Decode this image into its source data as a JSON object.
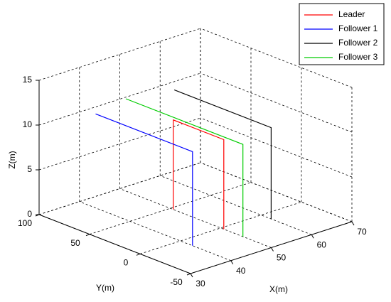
{
  "chart_data": {
    "type": "line3d",
    "xlabel": "X(m)",
    "ylabel": "Y(m)",
    "zlabel": "Z(m)",
    "xlim": [
      30,
      70
    ],
    "xticks": [
      30,
      40,
      50,
      60,
      70
    ],
    "ylim": [
      -50,
      100
    ],
    "yticks": [
      -50,
      0,
      50,
      100
    ],
    "zlim": [
      0,
      15
    ],
    "zticks": [
      0,
      5,
      10,
      15
    ],
    "grid": true,
    "legend": "upper-right",
    "series": [
      {
        "name": "Leader",
        "color": "#ff0000",
        "x": [
          50,
          50,
          50,
          50
        ],
        "y": [
          47,
          47,
          -3,
          -3
        ],
        "z": [
          0,
          10,
          10,
          0
        ]
      },
      {
        "name": "Follower 1",
        "color": "#0000ff",
        "x": [
          40,
          40,
          40
        ],
        "y": [
          84,
          -12,
          -12
        ],
        "z": [
          10.5,
          10.5,
          0
        ]
      },
      {
        "name": "Follower 2",
        "color": "#000000",
        "x": [
          60,
          60,
          60
        ],
        "y": [
          86,
          -10,
          -10
        ],
        "z": [
          10.2,
          10.2,
          0
        ]
      },
      {
        "name": "Follower 3",
        "color": "#00cc00",
        "x": [
          50,
          50,
          50
        ],
        "y": [
          94,
          -22,
          -22
        ],
        "z": [
          10.3,
          10.3,
          0
        ]
      }
    ]
  }
}
